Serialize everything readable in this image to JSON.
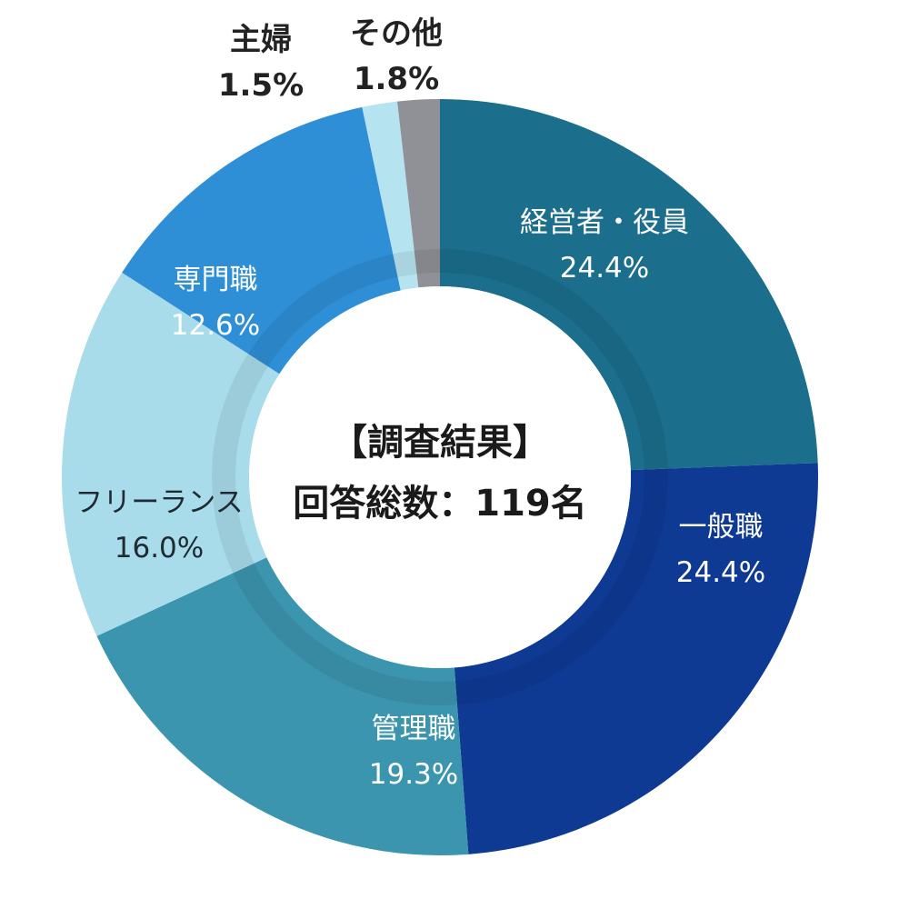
{
  "chart_data": {
    "type": "pie",
    "style": "donut",
    "title": "【調査結果】",
    "subtitle": "回答総数：119名",
    "slices": [
      {
        "label": "経営者・役員",
        "value": 24.4,
        "value_label": "24.4%",
        "color": "#1B6E8C"
      },
      {
        "label": "一般職",
        "value": 24.4,
        "value_label": "24.4%",
        "color": "#0E3A94"
      },
      {
        "label": "管理職",
        "value": 19.3,
        "value_label": "19.3%",
        "color": "#3C95AE"
      },
      {
        "label": "フリーランス",
        "value": 16.0,
        "value_label": "16.0%",
        "color": "#A8DCEA"
      },
      {
        "label": "専門職",
        "value": 12.6,
        "value_label": "12.6%",
        "color": "#2F8FD6"
      },
      {
        "label": "主婦",
        "value": 1.5,
        "value_label": "1.5%",
        "color": "#B6E3F0"
      },
      {
        "label": "その他",
        "value": 1.8,
        "value_label": "1.8%",
        "color": "#8F9196"
      }
    ],
    "label_colors": {
      "on_dark": "#ffffff",
      "on_light": "#1f2a33"
    }
  }
}
